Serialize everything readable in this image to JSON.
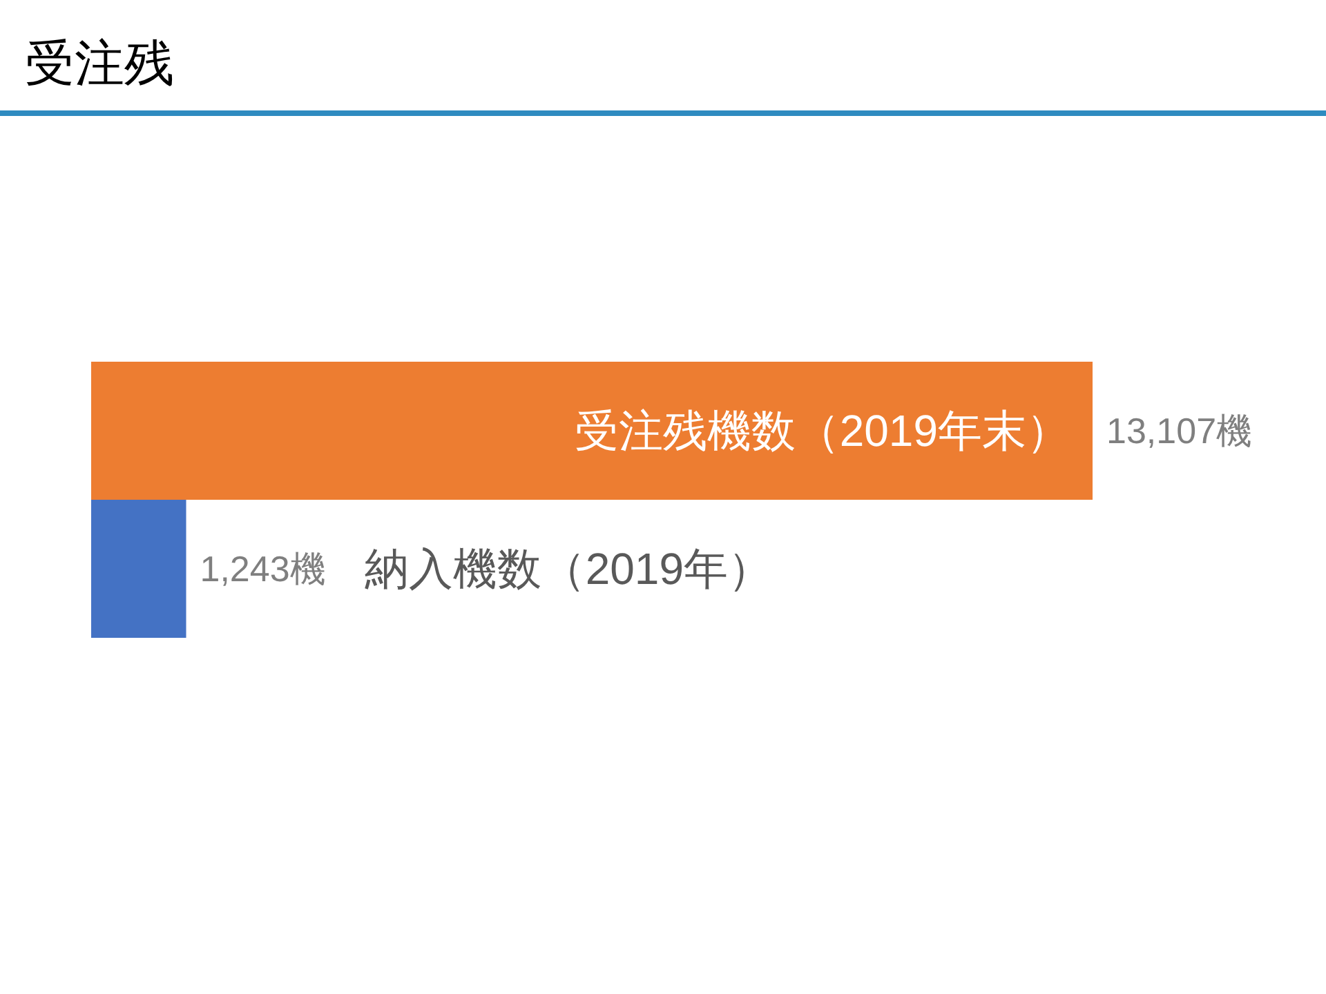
{
  "chart_data": {
    "type": "bar",
    "orientation": "horizontal",
    "title": "受注残",
    "categories": [
      "受注残機数（2019年末）",
      "納入機数（2019年）"
    ],
    "values": [
      13107,
      1243
    ],
    "colors": [
      "#ed7d31",
      "#4472c4"
    ],
    "value_labels": [
      "13,107機",
      "1,243機"
    ]
  }
}
